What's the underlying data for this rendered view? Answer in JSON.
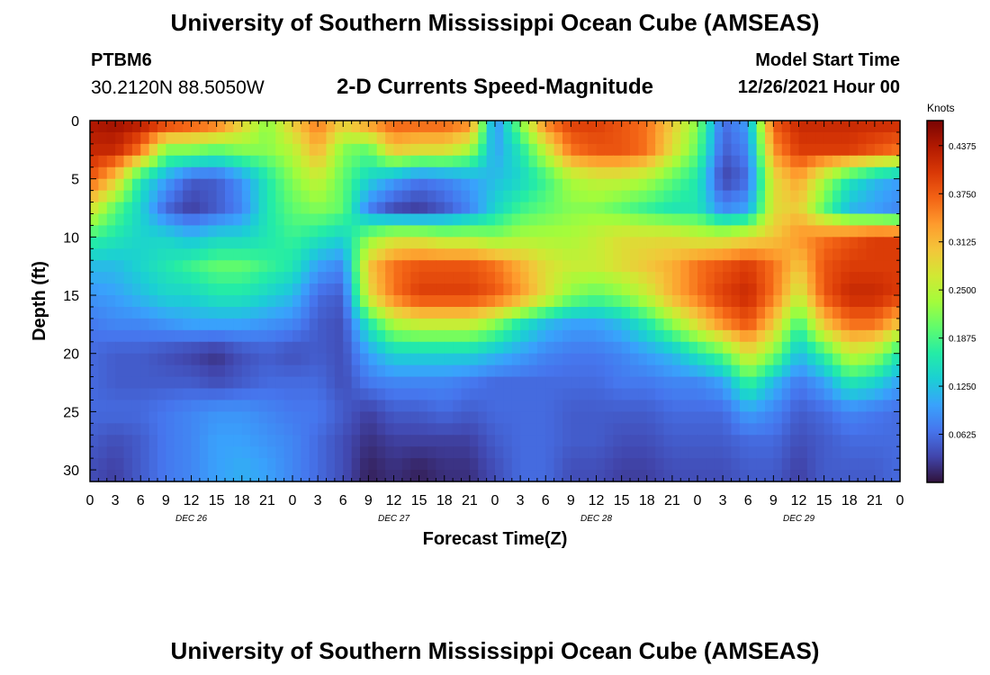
{
  "header": {
    "title": "University of Southern Mississippi Ocean Cube (AMSEAS)",
    "station_id": "PTBM6",
    "station_coords": "30.2120N  88.5050W",
    "model_start_label": "Model Start Time",
    "model_start_value": "12/26/2021 Hour 00"
  },
  "footer": {
    "title": "University of Southern Mississippi Ocean Cube (AMSEAS)"
  },
  "chart_data": {
    "type": "heatmap",
    "title": "2-D Currents Speed-Magnitude",
    "xlabel": "Forecast Time(Z)",
    "ylabel": "Depth (ft)",
    "x_ticks": [
      "0",
      "3",
      "6",
      "9",
      "12",
      "15",
      "18",
      "21",
      "0",
      "3",
      "6",
      "9",
      "12",
      "15",
      "18",
      "21",
      "0",
      "3",
      "6",
      "9",
      "12",
      "15",
      "18",
      "21",
      "0",
      "3",
      "6",
      "9",
      "12",
      "15",
      "18",
      "21",
      "0"
    ],
    "date_labels": [
      "DEC 26",
      "DEC 27",
      "DEC 28",
      "DEC 29"
    ],
    "xlim_hours": [
      0,
      96
    ],
    "y_ticks": [
      0,
      5,
      10,
      15,
      20,
      25,
      30
    ],
    "ylim_ft": [
      0,
      31
    ],
    "y_inverted": true,
    "grid": false,
    "colorbar": {
      "label": "Knots",
      "ticks": [
        "0.4375",
        "0.3750",
        "0.3125",
        "0.2500",
        "0.1875",
        "0.1250",
        "0.0625"
      ],
      "range": [
        0,
        0.47
      ],
      "stops": [
        "#30123b",
        "#4145ab",
        "#4675ed",
        "#39a2fc",
        "#1bcfd4",
        "#24eca6",
        "#61fc6c",
        "#a4fc3b",
        "#d1e834",
        "#f3c63a",
        "#fe9b2d",
        "#f36315",
        "#d93806",
        "#b11901",
        "#7a0403"
      ]
    },
    "rows_depth_ft": [
      0,
      2.5,
      5,
      7.5,
      10,
      12.5,
      15,
      17.5,
      20,
      22.5,
      25,
      27.5,
      30
    ],
    "cols_hour": [
      0,
      3,
      6,
      9,
      12,
      15,
      18,
      21,
      24,
      27,
      30,
      33,
      36,
      39,
      42,
      45,
      48,
      51,
      54,
      57,
      60,
      63,
      66,
      69,
      72,
      75,
      78,
      81,
      84,
      87,
      90,
      93,
      96
    ],
    "values_knots": [
      [
        0.44,
        0.45,
        0.44,
        0.42,
        0.4,
        0.38,
        0.3,
        0.22,
        0.3,
        0.36,
        0.3,
        0.35,
        0.38,
        0.38,
        0.38,
        0.36,
        0.08,
        0.22,
        0.36,
        0.4,
        0.4,
        0.38,
        0.36,
        0.3,
        0.22,
        0.06,
        0.1,
        0.38,
        0.42,
        0.42,
        0.42,
        0.42,
        0.42
      ],
      [
        0.42,
        0.42,
        0.36,
        0.22,
        0.22,
        0.2,
        0.22,
        0.22,
        0.25,
        0.32,
        0.22,
        0.2,
        0.3,
        0.28,
        0.28,
        0.24,
        0.1,
        0.16,
        0.26,
        0.36,
        0.38,
        0.38,
        0.36,
        0.28,
        0.2,
        0.05,
        0.08,
        0.34,
        0.4,
        0.4,
        0.4,
        0.38,
        0.36
      ],
      [
        0.38,
        0.3,
        0.16,
        0.1,
        0.05,
        0.05,
        0.09,
        0.16,
        0.22,
        0.26,
        0.2,
        0.14,
        0.1,
        0.07,
        0.08,
        0.1,
        0.12,
        0.14,
        0.18,
        0.24,
        0.26,
        0.26,
        0.24,
        0.2,
        0.16,
        0.03,
        0.06,
        0.28,
        0.33,
        0.24,
        0.16,
        0.12,
        0.1
      ],
      [
        0.28,
        0.2,
        0.14,
        0.06,
        0.03,
        0.05,
        0.08,
        0.16,
        0.2,
        0.22,
        0.2,
        0.08,
        0.04,
        0.03,
        0.05,
        0.08,
        0.14,
        0.18,
        0.2,
        0.22,
        0.22,
        0.2,
        0.18,
        0.16,
        0.16,
        0.08,
        0.1,
        0.28,
        0.3,
        0.2,
        0.12,
        0.1,
        0.08
      ],
      [
        0.18,
        0.16,
        0.14,
        0.14,
        0.12,
        0.14,
        0.14,
        0.16,
        0.18,
        0.16,
        0.14,
        0.22,
        0.26,
        0.26,
        0.24,
        0.24,
        0.22,
        0.24,
        0.24,
        0.24,
        0.26,
        0.28,
        0.28,
        0.28,
        0.26,
        0.26,
        0.28,
        0.3,
        0.34,
        0.36,
        0.38,
        0.4,
        0.4
      ],
      [
        0.12,
        0.12,
        0.14,
        0.16,
        0.18,
        0.2,
        0.2,
        0.18,
        0.16,
        0.1,
        0.08,
        0.3,
        0.36,
        0.38,
        0.38,
        0.38,
        0.36,
        0.32,
        0.28,
        0.26,
        0.26,
        0.28,
        0.3,
        0.32,
        0.36,
        0.38,
        0.4,
        0.36,
        0.3,
        0.38,
        0.4,
        0.4,
        0.4
      ],
      [
        0.09,
        0.1,
        0.12,
        0.14,
        0.14,
        0.16,
        0.16,
        0.14,
        0.12,
        0.06,
        0.05,
        0.28,
        0.36,
        0.4,
        0.4,
        0.4,
        0.38,
        0.34,
        0.28,
        0.22,
        0.2,
        0.22,
        0.26,
        0.32,
        0.36,
        0.4,
        0.42,
        0.36,
        0.26,
        0.38,
        0.42,
        0.42,
        0.4
      ],
      [
        0.07,
        0.08,
        0.08,
        0.09,
        0.1,
        0.1,
        0.1,
        0.09,
        0.08,
        0.05,
        0.04,
        0.16,
        0.24,
        0.26,
        0.26,
        0.26,
        0.22,
        0.16,
        0.12,
        0.1,
        0.1,
        0.12,
        0.16,
        0.22,
        0.28,
        0.34,
        0.38,
        0.3,
        0.18,
        0.3,
        0.36,
        0.36,
        0.3
      ],
      [
        0.06,
        0.05,
        0.05,
        0.04,
        0.03,
        0.02,
        0.04,
        0.05,
        0.04,
        0.05,
        0.04,
        0.1,
        0.14,
        0.14,
        0.14,
        0.14,
        0.12,
        0.1,
        0.08,
        0.07,
        0.07,
        0.08,
        0.1,
        0.12,
        0.16,
        0.2,
        0.28,
        0.22,
        0.12,
        0.18,
        0.26,
        0.24,
        0.16
      ],
      [
        0.06,
        0.05,
        0.05,
        0.05,
        0.05,
        0.04,
        0.05,
        0.06,
        0.06,
        0.06,
        0.04,
        0.07,
        0.08,
        0.08,
        0.08,
        0.07,
        0.06,
        0.06,
        0.06,
        0.06,
        0.06,
        0.07,
        0.07,
        0.08,
        0.08,
        0.1,
        0.18,
        0.12,
        0.07,
        0.1,
        0.16,
        0.14,
        0.1
      ],
      [
        0.06,
        0.06,
        0.06,
        0.07,
        0.08,
        0.09,
        0.09,
        0.08,
        0.07,
        0.07,
        0.05,
        0.03,
        0.05,
        0.05,
        0.06,
        0.05,
        0.06,
        0.06,
        0.06,
        0.05,
        0.05,
        0.05,
        0.05,
        0.06,
        0.06,
        0.06,
        0.1,
        0.08,
        0.05,
        0.06,
        0.08,
        0.07,
        0.06
      ],
      [
        0.05,
        0.04,
        0.05,
        0.07,
        0.08,
        0.1,
        0.1,
        0.09,
        0.08,
        0.06,
        0.04,
        0.02,
        0.03,
        0.03,
        0.03,
        0.03,
        0.05,
        0.06,
        0.06,
        0.05,
        0.05,
        0.04,
        0.04,
        0.05,
        0.05,
        0.05,
        0.06,
        0.06,
        0.04,
        0.05,
        0.06,
        0.06,
        0.06
      ],
      [
        0.04,
        0.03,
        0.05,
        0.07,
        0.08,
        0.1,
        0.11,
        0.1,
        0.08,
        0.06,
        0.04,
        0.01,
        0.02,
        0.01,
        0.02,
        0.02,
        0.04,
        0.06,
        0.06,
        0.04,
        0.04,
        0.03,
        0.03,
        0.04,
        0.04,
        0.04,
        0.05,
        0.05,
        0.03,
        0.05,
        0.05,
        0.05,
        0.06
      ]
    ]
  }
}
